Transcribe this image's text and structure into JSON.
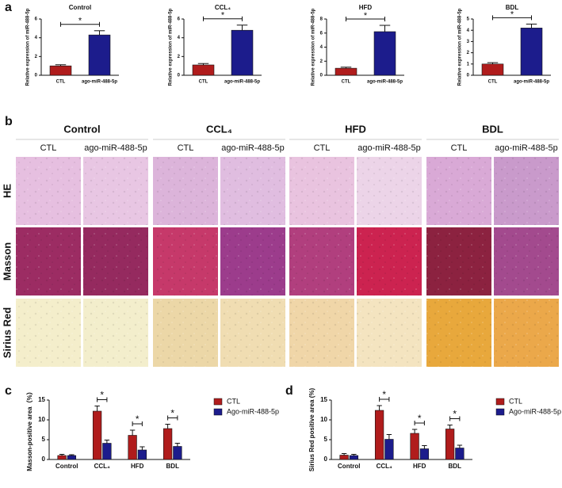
{
  "panel_labels": [
    "a",
    "b",
    "c",
    "d"
  ],
  "chart_data": [
    {
      "type": "bar",
      "title": "Control",
      "y_label": "Relative expression of miR-488-5p",
      "categories": [
        "CTL",
        "ago-miR-488-5p"
      ],
      "values": [
        1.0,
        4.3
      ],
      "errors": [
        0.12,
        0.45
      ],
      "colors": [
        "#b01c1c",
        "#1c1c8c"
      ],
      "ylim": [
        0,
        6
      ],
      "yticks": [
        0,
        2,
        4,
        6
      ],
      "annotation": "*"
    },
    {
      "type": "bar",
      "title": "CCL₄",
      "y_label": "Relative expression of miR-488-5p",
      "categories": [
        "CTL",
        "ago-miR-488-5p"
      ],
      "values": [
        1.1,
        4.8
      ],
      "errors": [
        0.15,
        0.55
      ],
      "colors": [
        "#b01c1c",
        "#1c1c8c"
      ],
      "ylim": [
        0,
        6
      ],
      "yticks": [
        0,
        2,
        4,
        6
      ],
      "annotation": "*"
    },
    {
      "type": "bar",
      "title": "HFD",
      "y_label": "Relative expression of miR-488-5p",
      "categories": [
        "CTL",
        "ago-miR-488-5p"
      ],
      "values": [
        1.0,
        6.2
      ],
      "errors": [
        0.15,
        0.9
      ],
      "colors": [
        "#b01c1c",
        "#1c1c8c"
      ],
      "ylim": [
        0,
        8
      ],
      "yticks": [
        0,
        2,
        4,
        6,
        8
      ],
      "annotation": "*"
    },
    {
      "type": "bar",
      "title": "BDL",
      "y_label": "Relative expression of miR-488-5p",
      "categories": [
        "CTL",
        "ago-miR-488-5p"
      ],
      "values": [
        1.0,
        4.2
      ],
      "errors": [
        0.12,
        0.35
      ],
      "colors": [
        "#b01c1c",
        "#1c1c8c"
      ],
      "ylim": [
        0,
        5
      ],
      "yticks": [
        0,
        1,
        2,
        3,
        4,
        5
      ],
      "annotation": "*"
    },
    {
      "type": "grouped_bar",
      "y_label": "Masson-positive area（%）",
      "categories": [
        "Control",
        "CCL₄",
        "HFD",
        "BDL"
      ],
      "series": [
        {
          "name": "CTL",
          "color": "#b01c1c",
          "values": [
            1.0,
            12.2,
            6.1,
            7.8
          ],
          "errors": [
            0.3,
            1.3,
            1.3,
            1.1
          ]
        },
        {
          "name": "Ago-miR-488-5p",
          "color": "#1c1c8c",
          "values": [
            1.0,
            4.1,
            2.4,
            3.3
          ],
          "errors": [
            0.2,
            0.8,
            0.8,
            0.8
          ]
        }
      ],
      "ylim": [
        0,
        15
      ],
      "yticks": [
        0,
        5,
        10,
        15
      ],
      "significance": [
        null,
        "*",
        "*",
        "*"
      ],
      "legend": "right"
    },
    {
      "type": "grouped_bar",
      "y_label": "Sirius Red positive area (%)",
      "categories": [
        "Control",
        "CCL₄",
        "HFD",
        "BDL"
      ],
      "series": [
        {
          "name": "CTL",
          "color": "#b01c1c",
          "values": [
            1.1,
            12.4,
            6.6,
            7.7
          ],
          "errors": [
            0.4,
            1.2,
            1.0,
            1.0
          ]
        },
        {
          "name": "Ago-miR-488-5p",
          "color": "#1c1c8c",
          "values": [
            1.0,
            5.1,
            2.7,
            2.9
          ],
          "errors": [
            0.3,
            1.2,
            0.8,
            0.7
          ]
        }
      ],
      "ylim": [
        0,
        15
      ],
      "yticks": [
        0,
        5,
        10,
        15
      ],
      "significance": [
        null,
        "*",
        "*",
        "*"
      ],
      "legend": "right"
    }
  ],
  "histology": {
    "groups": [
      "Control",
      "CCL₄",
      "HFD",
      "BDL"
    ],
    "conditions": [
      "CTL",
      "ago-miR-488-5p"
    ],
    "stains": [
      "HE",
      "Masson",
      "Sirius Red"
    ]
  }
}
